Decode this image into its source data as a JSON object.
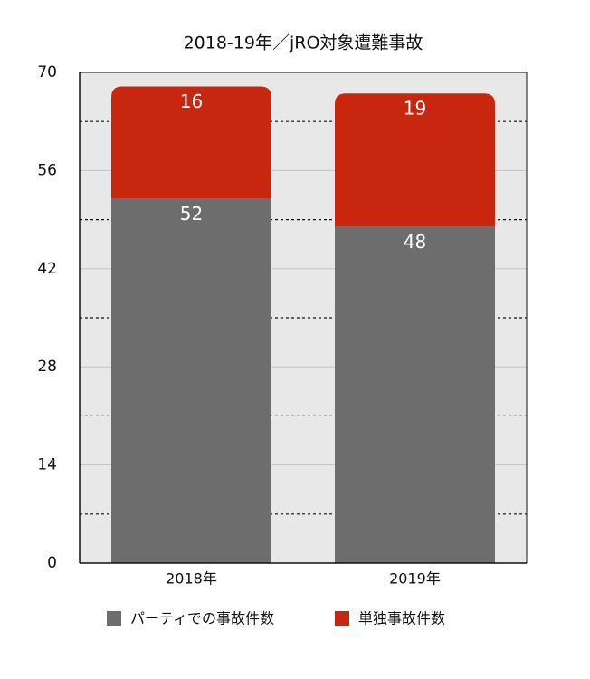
{
  "chart_data": {
    "type": "stacked_bar",
    "title": "2018-19年／jRO対象遭難事故",
    "categories": [
      "2018年",
      "2019年"
    ],
    "series": [
      {
        "name": "パーティでの事故件数",
        "color": "#6d6d6d",
        "values": [
          52,
          48
        ]
      },
      {
        "name": "単独事故件数",
        "color": "#c8260f",
        "values": [
          16,
          19
        ]
      }
    ],
    "ylim": [
      0,
      70
    ],
    "yticks": [
      0,
      14,
      28,
      42,
      56,
      70
    ],
    "minor_yticks": [
      7,
      21,
      35,
      49,
      63
    ],
    "grid": true,
    "legend": "bottom"
  }
}
